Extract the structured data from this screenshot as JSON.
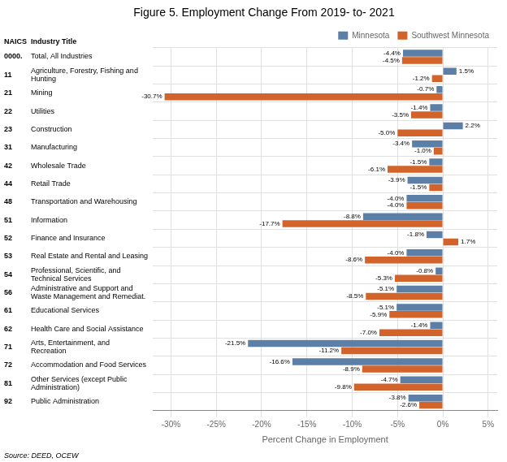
{
  "chart_data": {
    "type": "bar",
    "orientation": "horizontal",
    "title": "Figure 5. Employment Change From 2019- to- 2021",
    "xlabel": "Percent Change in Employment",
    "source": "Source: DEED, OCEW",
    "column_headers": [
      "NAICS",
      "Industry Title"
    ],
    "naics_codes": [
      "0000.",
      "11",
      "21",
      "22",
      "23",
      "31",
      "42",
      "44",
      "48",
      "51",
      "52",
      "53",
      "54",
      "56",
      "61",
      "62",
      "71",
      "72",
      "81",
      "92"
    ],
    "categories": [
      "Total, All Industries",
      "Agriculture, Forestry, Fishing and\nHunting",
      "Mining",
      "Utilities",
      "Construction",
      "Manufacturing",
      "Wholesale Trade",
      "Retail Trade",
      "Transportation and Warehousing",
      "Information",
      "Finance and Insurance",
      "Real Estate and Rental and Leasing",
      "Professional, Scientific, and\nTechnical Services",
      "Administrative and Support and\nWaste Management and Remediat.",
      "Educational Services",
      "Health Care and Social Assistance",
      "Arts, Entertainment, and\nRecreation",
      "Accommodation and Food Services",
      "Other Services (except Public\nAdministration)",
      "Public Administration"
    ],
    "series": [
      {
        "name": "Minnesota",
        "color": "#5b7fa6",
        "values": [
          -4.4,
          1.5,
          -0.7,
          -1.4,
          2.2,
          -3.4,
          -1.5,
          -3.9,
          -4.0,
          -8.8,
          -1.8,
          -4.0,
          -0.8,
          -5.1,
          -5.1,
          -1.4,
          -21.5,
          -16.6,
          -4.7,
          -3.8
        ],
        "value_labels": [
          "-4.4%",
          "1.5%",
          "-0.7%",
          "-1.4%",
          "2.2%",
          "-3.4%",
          "-1.5%",
          "-3.9%",
          "-4.0%",
          "-8.8%",
          "-1.8%",
          "-4.0%",
          "-0.8%",
          "-5.1%",
          "-5.1%",
          "-1.4%",
          "-21.5%",
          "-16.6%",
          "-4.7%",
          "-3.8%"
        ]
      },
      {
        "name": "Southwest Minnesota",
        "color": "#d2632a",
        "values": [
          -4.5,
          -1.2,
          -30.7,
          -3.5,
          -5.0,
          -1.0,
          -6.1,
          -1.5,
          -4.0,
          -17.7,
          1.7,
          -8.6,
          -5.3,
          -8.5,
          -5.9,
          -7.0,
          -11.2,
          -8.9,
          -9.8,
          -2.6
        ],
        "value_labels": [
          "-4.5%",
          "-1.2%",
          "-30.7%",
          "-3.5%",
          "-5.0%",
          "-1.0%",
          "-6.1%",
          "-1.5%",
          "-4.0%",
          "-17.7%",
          "1.7%",
          "-8.6%",
          "-5.3%",
          "-8.5%",
          "-5.9%",
          "-7.0%",
          "-11.2%",
          "-8.9%",
          "-9.8%",
          "-2.6%"
        ]
      }
    ],
    "xlim": [
      -32,
      6.0
    ],
    "xticks": [
      {
        "value": -30,
        "label": "-30%"
      },
      {
        "value": -25,
        "label": "-25%"
      },
      {
        "value": -20,
        "label": "-20%"
      },
      {
        "value": -15,
        "label": "-15%"
      },
      {
        "value": -10,
        "label": "-10%"
      },
      {
        "value": -5,
        "label": "-5%"
      },
      {
        "value": 0,
        "label": "0%"
      },
      {
        "value": 5,
        "label": "5%"
      }
    ],
    "grid": true,
    "legend": "upper right",
    "data_labels": true
  }
}
